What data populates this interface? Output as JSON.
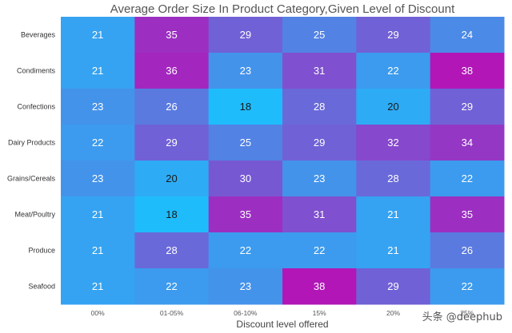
{
  "chart_data": {
    "type": "heatmap",
    "title": "Average Order Size In Product Category,Given Level of Discount",
    "xlabel": "Discount level offered",
    "ylabel": "",
    "x_categories": [
      "00%",
      "01-05%",
      "06-10%",
      "15%",
      "20%",
      "25%"
    ],
    "y_categories": [
      "Beverages",
      "Condiments",
      "Confections",
      "Dairy Products",
      "Grains/Cereals",
      "Meat/Poultry",
      "Produce",
      "Seafood"
    ],
    "values": [
      [
        21,
        35,
        29,
        25,
        29,
        24
      ],
      [
        21,
        36,
        23,
        31,
        22,
        38
      ],
      [
        23,
        26,
        18,
        28,
        20,
        29
      ],
      [
        22,
        29,
        25,
        29,
        32,
        34
      ],
      [
        23,
        20,
        30,
        23,
        28,
        22
      ],
      [
        21,
        18,
        35,
        31,
        21,
        35
      ],
      [
        21,
        28,
        22,
        22,
        21,
        26
      ],
      [
        21,
        22,
        23,
        38,
        29,
        22
      ]
    ],
    "colorscale": {
      "min": 18,
      "max": 38,
      "low_color": "#1fbcfc",
      "high_color": "#b216b7"
    },
    "legend": "none"
  },
  "watermark": "头条 @deephub"
}
